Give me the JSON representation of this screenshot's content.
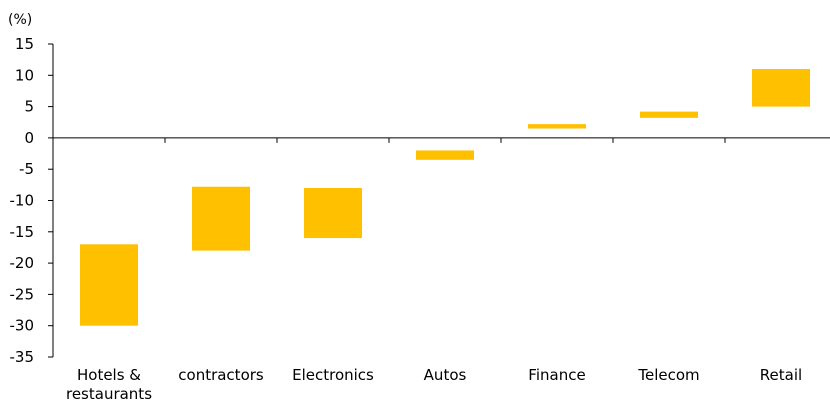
{
  "chart_data": {
    "type": "floating-bar",
    "unit_label": "(%)",
    "categories": [
      "Hotels & restaurants",
      "contractors",
      "Electronics",
      "Autos",
      "Finance",
      "Telecom",
      "Retail"
    ],
    "category_lines": [
      [
        "Hotels &",
        "restaurants"
      ],
      [
        "contractors"
      ],
      [
        "Electronics"
      ],
      [
        "Autos"
      ],
      [
        "Finance"
      ],
      [
        "Telecom"
      ],
      [
        "Retail"
      ]
    ],
    "ranges": [
      [
        -30,
        -17
      ],
      [
        -18,
        -7.8
      ],
      [
        -16,
        -8
      ],
      [
        -3.5,
        -2
      ],
      [
        1.5,
        2.2
      ],
      [
        3.2,
        4.2
      ],
      [
        5,
        11
      ]
    ],
    "ylim": [
      -35,
      15
    ],
    "yticks": [
      15,
      10,
      5,
      0,
      -5,
      -10,
      -15,
      -20,
      -25,
      -30,
      -35
    ],
    "bar_color": "#FFC000",
    "grid": false,
    "legend": "none"
  }
}
